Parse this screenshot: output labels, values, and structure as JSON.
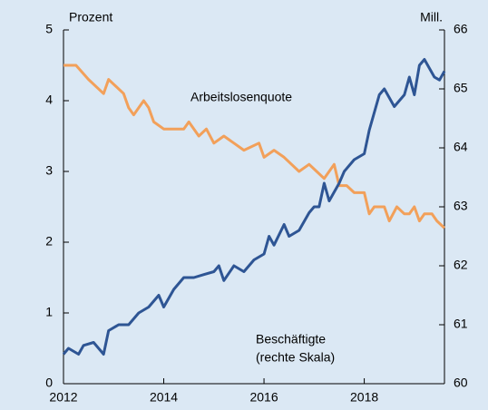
{
  "chart_data": {
    "type": "line",
    "y_label": "Prozent",
    "y2_label": "Mill.",
    "xlim": [
      2012,
      2019.6
    ],
    "xticks": [
      2012,
      2014,
      2016,
      2018
    ],
    "ylim": [
      0,
      5
    ],
    "yticks": [
      0,
      1,
      2,
      3,
      4,
      5
    ],
    "y2lim": [
      60,
      66
    ],
    "y2ticks": [
      60,
      61,
      62,
      63,
      64,
      65,
      66
    ],
    "series": [
      {
        "name": "Arbeitslosenquote",
        "color": "#f2a05a",
        "x": [
          2012,
          2012.25,
          2012.5,
          2012.8,
          2012.9,
          2013.05,
          2013.2,
          2013.3,
          2013.4,
          2013.6,
          2013.7,
          2013.8,
          2014,
          2014.4,
          2014.5,
          2014.7,
          2014.85,
          2015,
          2015.2,
          2015.4,
          2015.6,
          2015.9,
          2016,
          2016.2,
          2016.4,
          2016.55,
          2016.7,
          2016.9,
          2017.05,
          2017.2,
          2017.4,
          2017.5,
          2017.65,
          2017.8,
          2018,
          2018.1,
          2018.2,
          2018.4,
          2018.5,
          2018.65,
          2018.8,
          2018.9,
          2019,
          2019.1,
          2019.2,
          2019.35,
          2019.45,
          2019.6
        ],
        "values": [
          4.5,
          4.5,
          4.3,
          4.1,
          4.3,
          4.2,
          4.1,
          3.9,
          3.8,
          4.0,
          3.9,
          3.7,
          3.6,
          3.6,
          3.7,
          3.5,
          3.6,
          3.4,
          3.5,
          3.4,
          3.3,
          3.4,
          3.2,
          3.3,
          3.2,
          3.1,
          3.0,
          3.1,
          3.0,
          2.9,
          3.1,
          2.8,
          2.8,
          2.7,
          2.7,
          2.4,
          2.5,
          2.5,
          2.3,
          2.5,
          2.4,
          2.4,
          2.5,
          2.3,
          2.4,
          2.4,
          2.3,
          2.2
        ]
      },
      {
        "name": "Beschäftigte",
        "axis": "y2",
        "color": "#2e5594",
        "x": [
          2012,
          2012.1,
          2012.3,
          2012.4,
          2012.6,
          2012.8,
          2012.9,
          2013.1,
          2013.3,
          2013.5,
          2013.7,
          2013.9,
          2014,
          2014.2,
          2014.4,
          2014.6,
          2014.8,
          2015,
          2015.1,
          2015.2,
          2015.4,
          2015.6,
          2015.8,
          2016,
          2016.1,
          2016.2,
          2016.4,
          2016.5,
          2016.7,
          2016.9,
          2017,
          2017.1,
          2017.2,
          2017.3,
          2017.5,
          2017.6,
          2017.8,
          2018,
          2018.1,
          2018.3,
          2018.4,
          2018.6,
          2018.8,
          2018.9,
          2019,
          2019.1,
          2019.2,
          2019.4,
          2019.5,
          2019.6
        ],
        "values": [
          60.5,
          60.6,
          60.5,
          60.65,
          60.7,
          60.5,
          60.9,
          61.0,
          61.0,
          61.2,
          61.3,
          61.5,
          61.3,
          61.6,
          61.8,
          61.8,
          61.85,
          61.9,
          62.0,
          61.75,
          62.0,
          61.9,
          62.1,
          62.2,
          62.5,
          62.35,
          62.7,
          62.5,
          62.6,
          62.9,
          63.0,
          63.0,
          63.4,
          63.1,
          63.4,
          63.6,
          63.8,
          63.9,
          64.3,
          64.9,
          65.0,
          64.7,
          64.9,
          65.2,
          64.9,
          65.4,
          65.5,
          65.2,
          65.15,
          65.3
        ]
      }
    ],
    "annotations": [
      "Beschäftigte",
      "(rechte Skala)"
    ]
  }
}
